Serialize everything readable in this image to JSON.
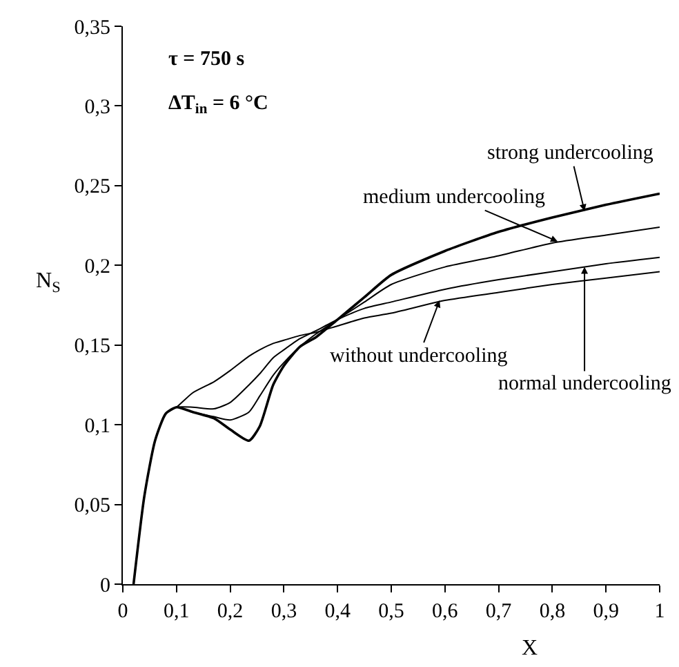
{
  "chart_data": {
    "type": "line",
    "xlabel": "X",
    "ylabel": "N$_{S}$",
    "x": [
      0.02,
      0.04,
      0.06,
      0.08,
      0.1,
      0.13,
      0.17,
      0.2,
      0.235,
      0.255,
      0.28,
      0.3,
      0.33,
      0.36,
      0.4,
      0.45,
      0.5,
      0.6,
      0.7,
      0.8,
      0.9,
      1
    ],
    "series": [
      {
        "color": "#000000",
        "values": [
          0,
          0.055,
          0.09,
          0.107,
          0.111,
          0.12,
          0.127,
          0.134,
          0.143,
          0.147,
          0.151,
          0.153,
          0.156,
          0.158,
          0.162,
          0.167,
          0.17,
          0.178,
          0.183,
          0.188,
          0.192,
          0.196
        ]
      },
      {
        "color": "#000000",
        "values": [
          0,
          0.055,
          0.09,
          0.107,
          0.111,
          0.111,
          0.11,
          0.114,
          0.125,
          0.132,
          0.142,
          0.147,
          0.154,
          0.159,
          0.166,
          0.173,
          0.177,
          0.185,
          0.191,
          0.196,
          0.201,
          0.205
        ]
      },
      {
        "color": "#000000",
        "values": [
          0,
          0.055,
          0.09,
          0.107,
          0.111,
          0.108,
          0.105,
          0.103,
          0.108,
          0.118,
          0.131,
          0.139,
          0.149,
          0.157,
          0.166,
          0.177,
          0.188,
          0.199,
          0.206,
          0.214,
          0.219,
          0.224
        ]
      },
      {
        "color": "#000000",
        "values": [
          0,
          0.055,
          0.09,
          0.107,
          0.111,
          0.108,
          0.104,
          0.097,
          0.09,
          0.099,
          0.125,
          0.137,
          0.149,
          0.155,
          0.166,
          0.18,
          0.194,
          0.209,
          0.221,
          0.23,
          0.238,
          0.245
        ]
      }
    ],
    "xlim": [
      0,
      1
    ],
    "ylim": [
      0,
      0.35
    ],
    "xticks": [
      0,
      {
        "value": 0.1,
        "label": "0,1"
      },
      {
        "value": 0.2,
        "label": "0,2"
      },
      {
        "value": 0.3,
        "label": "0,3"
      },
      {
        "value": 0.4,
        "label": "0,4"
      },
      {
        "value": 0.5,
        "label": "0,5"
      },
      {
        "value": 0.6,
        "label": "0,6"
      },
      {
        "value": 0.7,
        "label": "0,7"
      },
      {
        "value": 0.8,
        "label": "0,8"
      },
      {
        "value": 0.9,
        "label": "0,9"
      },
      1
    ],
    "yticks": [
      0,
      {
        "value": 0.05,
        "label": "0,05"
      },
      {
        "value": 0.1,
        "label": "0,1"
      },
      {
        "value": 0.15,
        "label": "0,15"
      },
      {
        "value": 0.2,
        "label": "0,2"
      },
      {
        "value": 0.25,
        "label": "0,25"
      },
      {
        "value": 0.3,
        "label": "0,3"
      },
      {
        "value": 0.35,
        "label": "0,35"
      }
    ],
    "marker": "none",
    "line_style": "solid",
    "annotations": [
      "τ = 750 s",
      "ΔT$_{in}$ = 6 °C",
      {
        "text": "strong undercooling",
        "x": 0.86,
        "y": 0.234
      },
      {
        "text": "medium undercooling",
        "x": 0.81,
        "y": 0.215
      },
      {
        "text": "without undercooling",
        "x": 0.59,
        "y": 0.178
      },
      {
        "text": "normal undercooling",
        "x": 0.86,
        "y": 0.199
      }
    ]
  }
}
